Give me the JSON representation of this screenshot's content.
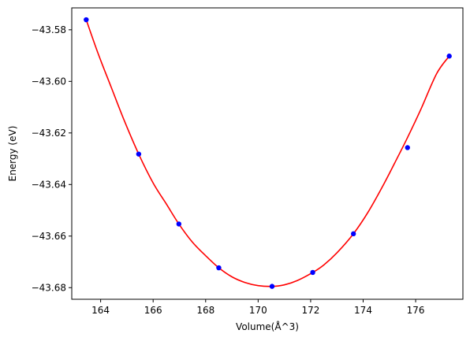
{
  "chart_data": {
    "type": "scatter",
    "xlabel": "Volume(Å^3)",
    "ylabel": "Energy (eV)",
    "xlim": [
      162.9,
      177.8
    ],
    "ylim": [
      -43.6845,
      -43.5715
    ],
    "xticks": [
      164,
      166,
      168,
      170,
      172,
      174,
      176
    ],
    "yticks": [
      -43.58,
      -43.6,
      -43.62,
      -43.64,
      -43.66,
      -43.68
    ],
    "ytick_labels": [
      "−43.58",
      "−43.60",
      "−43.62",
      "−43.64",
      "−43.66",
      "−43.68"
    ],
    "grid": false,
    "series": [
      {
        "kind": "points",
        "color": "#0000ff",
        "x": [
          163.45,
          165.45,
          166.98,
          168.5,
          170.53,
          172.08,
          173.63,
          175.69,
          177.28
        ],
        "y": [
          -43.5761,
          -43.6282,
          -43.6553,
          -43.6723,
          -43.6795,
          -43.6741,
          -43.6591,
          -43.6257,
          -43.5902
        ]
      },
      {
        "kind": "fit-curve",
        "color": "#ff0000",
        "x": [
          163.45,
          163.9,
          164.4,
          164.9,
          165.45,
          166.0,
          166.5,
          166.98,
          167.5,
          168.0,
          168.5,
          169.0,
          169.5,
          170.0,
          170.53,
          171.0,
          171.5,
          172.08,
          172.5,
          173.0,
          173.63,
          174.2,
          174.8,
          175.3,
          175.69,
          176.2,
          176.8,
          177.28
        ],
        "y": [
          -43.5761,
          -43.5891,
          -43.6022,
          -43.6152,
          -43.6282,
          -43.6394,
          -43.6475,
          -43.6553,
          -43.6624,
          -43.6676,
          -43.6723,
          -43.6758,
          -43.678,
          -43.6792,
          -43.6795,
          -43.6789,
          -43.6772,
          -43.6741,
          -43.6712,
          -43.6665,
          -43.6591,
          -43.6505,
          -43.6396,
          -43.6297,
          -43.6218,
          -43.6108,
          -43.597,
          -43.5902
        ]
      }
    ]
  }
}
